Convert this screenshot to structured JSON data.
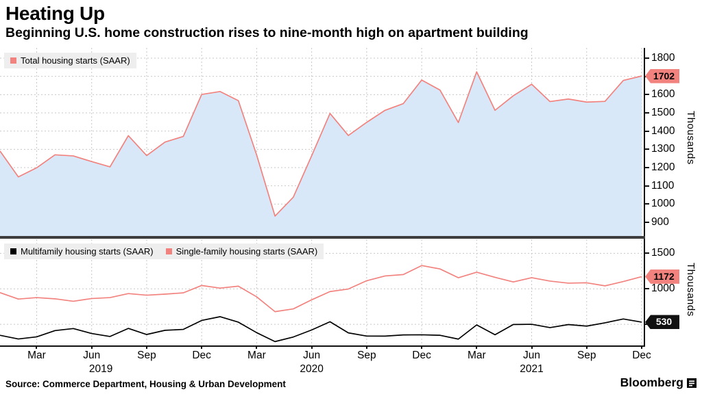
{
  "header": {
    "title": "Heating Up",
    "subtitle": "Beginning U.S. home construction rises to nine-month high on apartment building"
  },
  "footer": {
    "source": "Source: Commerce Department, Housing & Urban Development",
    "brand": "Bloomberg"
  },
  "axis": {
    "thousands_label": "Thousands"
  },
  "colors": {
    "accent": "#f2827e",
    "area_fill": "#d9e8f8",
    "multifamily": "#000000",
    "grid": "#c7c7c7",
    "legend_bg": "#eeeeee",
    "badge_dark": "#111111"
  },
  "chart_data": {
    "months": [
      "2019-01",
      "2019-02",
      "2019-03",
      "2019-04",
      "2019-05",
      "2019-06",
      "2019-07",
      "2019-08",
      "2019-09",
      "2019-10",
      "2019-11",
      "2019-12",
      "2020-01",
      "2020-02",
      "2020-03",
      "2020-04",
      "2020-05",
      "2020-06",
      "2020-07",
      "2020-08",
      "2020-09",
      "2020-10",
      "2020-11",
      "2020-12",
      "2021-01",
      "2021-02",
      "2021-03",
      "2021-04",
      "2021-05",
      "2021-06",
      "2021-07",
      "2021-08",
      "2021-09",
      "2021-10",
      "2021-11",
      "2021-12"
    ],
    "x_ticks": [
      {
        "label": "Mar",
        "index": 2
      },
      {
        "label": "Jun",
        "index": 5
      },
      {
        "label": "Sep",
        "index": 8
      },
      {
        "label": "Dec",
        "index": 11
      },
      {
        "label": "Mar",
        "index": 14
      },
      {
        "label": "Jun",
        "index": 17
      },
      {
        "label": "Sep",
        "index": 20
      },
      {
        "label": "Dec",
        "index": 23
      },
      {
        "label": "Mar",
        "index": 26
      },
      {
        "label": "Jun",
        "index": 29
      },
      {
        "label": "Sep",
        "index": 32
      },
      {
        "label": "Dec",
        "index": 35
      }
    ],
    "years": [
      {
        "label": "2019",
        "index": 5.5
      },
      {
        "label": "2020",
        "index": 17
      },
      {
        "label": "2021",
        "index": 29
      }
    ],
    "panels": [
      {
        "type": "area",
        "legend": [
          {
            "label": "Total housing starts (SAAR)",
            "color": "#f2827e"
          }
        ],
        "series": [
          {
            "name": "Total housing starts (SAAR)",
            "color": "#f2827e",
            "area_fill": "#d9e8f8",
            "values": [
              1291,
              1149,
              1199,
              1270,
              1264,
              1233,
              1204,
              1375,
              1266,
              1340,
              1371,
              1601,
              1617,
              1567,
              1269,
              934,
              1038,
              1265,
              1497,
              1376,
              1448,
              1514,
              1551,
              1680,
              1625,
              1447,
              1725,
              1514,
              1594,
              1657,
              1562,
              1576,
              1559,
              1563,
              1678,
              1702
            ]
          }
        ],
        "yticks": [
          900,
          1000,
          1100,
          1200,
          1300,
          1400,
          1500,
          1600,
          1700,
          1800
        ],
        "ylim": [
          850,
          1856
        ],
        "ylabel": "Thousands",
        "end_badge": {
          "label": "1702",
          "value": 1702,
          "bg": "#f2827e",
          "fg": "#000000"
        }
      },
      {
        "type": "line",
        "legend": [
          {
            "label": "Multifamily housing starts (SAAR)",
            "color": "#000000"
          },
          {
            "label": "Single-family housing starts (SAAR)",
            "color": "#f2827e"
          }
        ],
        "series": [
          {
            "name": "Multifamily housing starts (SAAR)",
            "color": "#000000",
            "values": [
              345,
              293,
              323,
              411,
              440,
              370,
              328,
              442,
              356,
              415,
              428,
              554,
              607,
              530,
              382,
              256,
              321,
              420,
              536,
              379,
              334,
              333,
              350,
              352,
              345,
              291,
              491,
              352,
              497,
              500,
              453,
              496,
              474,
              521,
              575,
              530
            ],
            "end_badge": {
              "label": "530",
              "bg": "#111111",
              "fg": "#ffffff"
            }
          },
          {
            "name": "Single-family housing starts (SAAR)",
            "color": "#f2827e",
            "values": [
              946,
              856,
              876,
              859,
              824,
              863,
              876,
              933,
              910,
              925,
              943,
              1047,
              1010,
              1037,
              887,
              678,
              717,
              845,
              961,
              997,
              1114,
              1181,
              1201,
              1328,
              1280,
              1156,
              1234,
              1162,
              1097,
              1157,
              1109,
              1080,
              1085,
              1042,
              1103,
              1172
            ],
            "end_badge": {
              "label": "1172",
              "bg": "#f2827e",
              "fg": "#000000"
            }
          }
        ],
        "yticks": [
          500,
          1000,
          1500
        ],
        "ylim": [
          250,
          1600
        ],
        "ylabel": "Thousands"
      }
    ]
  }
}
